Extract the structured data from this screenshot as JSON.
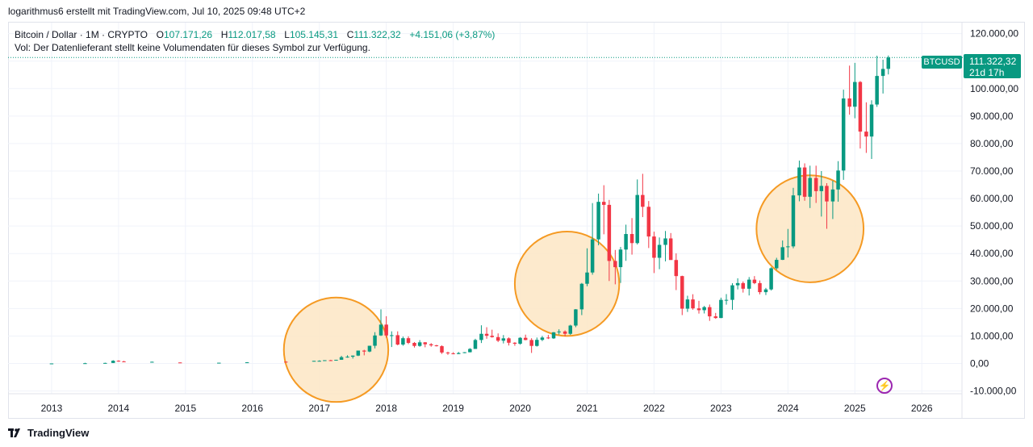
{
  "caption": "logarithmus6 erstellt mit TradingView.com, Jul 10, 2025 09:48 UTC+2",
  "legend": {
    "symbol_line": "Bitcoin / Dollar · 1M · CRYPTO",
    "o_label": "O",
    "o_value": "107.171,26",
    "h_label": "H",
    "h_value": "112.017,58",
    "l_label": "L",
    "l_value": "105.145,31",
    "c_label": "C",
    "c_value": "111.322,32",
    "change": "+4.151,06 (+3,87%)"
  },
  "vol_note": "Vol: Der Datenlieferant stellt keine Volumendaten für dieses Symbol zur Verfügung.",
  "price_tag": {
    "symbol": "BTCUSD",
    "price": "111.322,32",
    "countdown": "21d 17h"
  },
  "footer": {
    "brand": "TradingView"
  },
  "colors": {
    "up": "#089981",
    "down": "#f23645",
    "circle_fill": "#fde6c4",
    "circle_stroke": "#f59a23",
    "grid": "#f0f3fa"
  },
  "icons": {
    "logo": "tradingview-logo-icon",
    "bolt": "lightning-bolt-icon"
  },
  "chart_data": {
    "type": "candlestick",
    "title": "Bitcoin / Dollar · 1M · CRYPTO",
    "y_ticks": [
      "120.000,00",
      "110.000,00",
      "100.000,00",
      "90.000,00",
      "80.000,00",
      "70.000,00",
      "60.000,00",
      "50.000,00",
      "40.000,00",
      "30.000,00",
      "20.000,00",
      "10.000,00",
      "0,00",
      "-10.000,00"
    ],
    "y_tick_values": [
      120000,
      110000,
      100000,
      90000,
      80000,
      70000,
      60000,
      50000,
      40000,
      30000,
      20000,
      10000,
      0,
      -10000
    ],
    "x_ticks": [
      "2013",
      "2014",
      "2015",
      "2016",
      "2017",
      "2018",
      "2019",
      "2020",
      "2021",
      "2022",
      "2023",
      "2024",
      "2025",
      "2026"
    ],
    "ylim": [
      -11000,
      124000
    ],
    "xlim": [
      2012.35,
      2026.6
    ],
    "last_price": 111322.32,
    "highlight_circles": [
      {
        "t": 2017.25,
        "price": 5000,
        "radius_years": 0.78
      },
      {
        "t": 2020.7,
        "price": 29000,
        "radius_years": 0.78
      },
      {
        "t": 2024.33,
        "price": 49000,
        "radius_years": 0.8
      }
    ],
    "candles": [
      {
        "t": 2013.0,
        "o": 13,
        "h": 22,
        "l": 13,
        "c": 20
      },
      {
        "t": 2013.5,
        "o": 90,
        "h": 260,
        "l": 60,
        "c": 100
      },
      {
        "t": 2013.8,
        "o": 150,
        "h": 300,
        "l": 120,
        "c": 200
      },
      {
        "t": 2013.92,
        "o": 200,
        "h": 1200,
        "l": 190,
        "c": 1000
      },
      {
        "t": 2014.0,
        "o": 1000,
        "h": 1160,
        "l": 650,
        "c": 780
      },
      {
        "t": 2014.08,
        "o": 780,
        "h": 950,
        "l": 500,
        "c": 550
      },
      {
        "t": 2014.5,
        "o": 600,
        "h": 700,
        "l": 550,
        "c": 620
      },
      {
        "t": 2014.92,
        "o": 370,
        "h": 400,
        "l": 310,
        "c": 320
      },
      {
        "t": 2015.5,
        "o": 250,
        "h": 300,
        "l": 200,
        "c": 280
      },
      {
        "t": 2015.92,
        "o": 380,
        "h": 500,
        "l": 350,
        "c": 430
      },
      {
        "t": 2016.5,
        "o": 650,
        "h": 780,
        "l": 500,
        "c": 620
      },
      {
        "t": 2016.92,
        "o": 740,
        "h": 980,
        "l": 730,
        "c": 960
      },
      {
        "t": 2017.0,
        "o": 960,
        "h": 1150,
        "l": 750,
        "c": 970
      },
      {
        "t": 2017.08,
        "o": 970,
        "h": 1200,
        "l": 920,
        "c": 1190
      },
      {
        "t": 2017.17,
        "o": 1190,
        "h": 1350,
        "l": 890,
        "c": 1080
      },
      {
        "t": 2017.25,
        "o": 1080,
        "h": 1350,
        "l": 1060,
        "c": 1350
      },
      {
        "t": 2017.33,
        "o": 1350,
        "h": 2800,
        "l": 1350,
        "c": 2300
      },
      {
        "t": 2017.42,
        "o": 2300,
        "h": 3000,
        "l": 2100,
        "c": 2480
      },
      {
        "t": 2017.5,
        "o": 2480,
        "h": 2900,
        "l": 1800,
        "c": 2870
      },
      {
        "t": 2017.58,
        "o": 2870,
        "h": 4700,
        "l": 2700,
        "c": 4700
      },
      {
        "t": 2017.67,
        "o": 4700,
        "h": 5000,
        "l": 2970,
        "c": 4350
      },
      {
        "t": 2017.75,
        "o": 4350,
        "h": 6470,
        "l": 4100,
        "c": 6450
      },
      {
        "t": 2017.83,
        "o": 6450,
        "h": 11400,
        "l": 5500,
        "c": 10200
      },
      {
        "t": 2017.92,
        "o": 10200,
        "h": 19700,
        "l": 10000,
        "c": 14150
      },
      {
        "t": 2018.0,
        "o": 14150,
        "h": 17200,
        "l": 9400,
        "c": 10200
      },
      {
        "t": 2018.08,
        "o": 10200,
        "h": 11700,
        "l": 6000,
        "c": 10300
      },
      {
        "t": 2018.17,
        "o": 10300,
        "h": 11700,
        "l": 6600,
        "c": 6900
      },
      {
        "t": 2018.25,
        "o": 6900,
        "h": 9800,
        "l": 6450,
        "c": 9200
      },
      {
        "t": 2018.33,
        "o": 9200,
        "h": 9900,
        "l": 7050,
        "c": 7500
      },
      {
        "t": 2018.42,
        "o": 7500,
        "h": 7800,
        "l": 5800,
        "c": 6400
      },
      {
        "t": 2018.5,
        "o": 6400,
        "h": 8500,
        "l": 6100,
        "c": 7700
      },
      {
        "t": 2018.58,
        "o": 7700,
        "h": 7800,
        "l": 5900,
        "c": 7000
      },
      {
        "t": 2018.67,
        "o": 7000,
        "h": 7400,
        "l": 6100,
        "c": 6600
      },
      {
        "t": 2018.75,
        "o": 6600,
        "h": 6800,
        "l": 6200,
        "c": 6300
      },
      {
        "t": 2018.83,
        "o": 6300,
        "h": 6600,
        "l": 3500,
        "c": 4000
      },
      {
        "t": 2018.92,
        "o": 4000,
        "h": 4300,
        "l": 3150,
        "c": 3700
      },
      {
        "t": 2019.0,
        "o": 3700,
        "h": 4100,
        "l": 3350,
        "c": 3450
      },
      {
        "t": 2019.08,
        "o": 3450,
        "h": 4200,
        "l": 3400,
        "c": 3800
      },
      {
        "t": 2019.17,
        "o": 3800,
        "h": 4150,
        "l": 3750,
        "c": 4100
      },
      {
        "t": 2019.25,
        "o": 4100,
        "h": 5600,
        "l": 4050,
        "c": 5300
      },
      {
        "t": 2019.33,
        "o": 5300,
        "h": 9000,
        "l": 5300,
        "c": 8550
      },
      {
        "t": 2019.42,
        "o": 8550,
        "h": 13900,
        "l": 7450,
        "c": 10800
      },
      {
        "t": 2019.5,
        "o": 10800,
        "h": 13200,
        "l": 9000,
        "c": 10100
      },
      {
        "t": 2019.58,
        "o": 10100,
        "h": 12300,
        "l": 9400,
        "c": 9600
      },
      {
        "t": 2019.67,
        "o": 9600,
        "h": 10950,
        "l": 7800,
        "c": 8300
      },
      {
        "t": 2019.75,
        "o": 8300,
        "h": 10350,
        "l": 7300,
        "c": 9150
      },
      {
        "t": 2019.83,
        "o": 9150,
        "h": 9500,
        "l": 6550,
        "c": 7550
      },
      {
        "t": 2019.92,
        "o": 7550,
        "h": 7750,
        "l": 6450,
        "c": 7200
      },
      {
        "t": 2020.0,
        "o": 7200,
        "h": 9600,
        "l": 6850,
        "c": 9350
      },
      {
        "t": 2020.08,
        "o": 9350,
        "h": 10500,
        "l": 8450,
        "c": 8550
      },
      {
        "t": 2020.17,
        "o": 8550,
        "h": 9200,
        "l": 3850,
        "c": 6400
      },
      {
        "t": 2020.25,
        "o": 6400,
        "h": 9450,
        "l": 6150,
        "c": 8600
      },
      {
        "t": 2020.33,
        "o": 8600,
        "h": 10050,
        "l": 8150,
        "c": 9450
      },
      {
        "t": 2020.42,
        "o": 9450,
        "h": 10400,
        "l": 8900,
        "c": 9150
      },
      {
        "t": 2020.5,
        "o": 9150,
        "h": 11450,
        "l": 8950,
        "c": 11350
      },
      {
        "t": 2020.58,
        "o": 11350,
        "h": 12450,
        "l": 10550,
        "c": 11650
      },
      {
        "t": 2020.67,
        "o": 11650,
        "h": 12050,
        "l": 9850,
        "c": 10800
      },
      {
        "t": 2020.75,
        "o": 10800,
        "h": 14100,
        "l": 10400,
        "c": 13800
      },
      {
        "t": 2020.83,
        "o": 13800,
        "h": 19800,
        "l": 13200,
        "c": 19700
      },
      {
        "t": 2020.92,
        "o": 19700,
        "h": 29300,
        "l": 17600,
        "c": 29000
      },
      {
        "t": 2021.0,
        "o": 29000,
        "h": 41900,
        "l": 28100,
        "c": 33100
      },
      {
        "t": 2021.08,
        "o": 33100,
        "h": 58350,
        "l": 32300,
        "c": 45150
      },
      {
        "t": 2021.17,
        "o": 45150,
        "h": 61800,
        "l": 43000,
        "c": 58800
      },
      {
        "t": 2021.25,
        "o": 58800,
        "h": 64850,
        "l": 47000,
        "c": 57700
      },
      {
        "t": 2021.33,
        "o": 57700,
        "h": 59500,
        "l": 30000,
        "c": 37300
      },
      {
        "t": 2021.42,
        "o": 37300,
        "h": 41300,
        "l": 28800,
        "c": 35050
      },
      {
        "t": 2021.5,
        "o": 35050,
        "h": 42400,
        "l": 29300,
        "c": 41450
      },
      {
        "t": 2021.58,
        "o": 41450,
        "h": 50500,
        "l": 37350,
        "c": 47100
      },
      {
        "t": 2021.67,
        "o": 47100,
        "h": 52900,
        "l": 39600,
        "c": 43800
      },
      {
        "t": 2021.75,
        "o": 43800,
        "h": 66950,
        "l": 43300,
        "c": 61300
      },
      {
        "t": 2021.83,
        "o": 61300,
        "h": 69000,
        "l": 53250,
        "c": 57000
      },
      {
        "t": 2021.92,
        "o": 57000,
        "h": 59100,
        "l": 42000,
        "c": 46200
      },
      {
        "t": 2022.0,
        "o": 46200,
        "h": 47950,
        "l": 32900,
        "c": 38450
      },
      {
        "t": 2022.08,
        "o": 38450,
        "h": 45850,
        "l": 34300,
        "c": 43150
      },
      {
        "t": 2022.17,
        "o": 43150,
        "h": 48200,
        "l": 37150,
        "c": 45500
      },
      {
        "t": 2022.25,
        "o": 45500,
        "h": 47450,
        "l": 37700,
        "c": 37650
      },
      {
        "t": 2022.33,
        "o": 37650,
        "h": 40050,
        "l": 26700,
        "c": 31800
      },
      {
        "t": 2022.42,
        "o": 31800,
        "h": 31950,
        "l": 17600,
        "c": 19950
      },
      {
        "t": 2022.5,
        "o": 19950,
        "h": 24650,
        "l": 18750,
        "c": 23300
      },
      {
        "t": 2022.58,
        "o": 23300,
        "h": 25200,
        "l": 19550,
        "c": 20050
      },
      {
        "t": 2022.67,
        "o": 20050,
        "h": 22800,
        "l": 18150,
        "c": 19400
      },
      {
        "t": 2022.75,
        "o": 19400,
        "h": 20950,
        "l": 18200,
        "c": 20500
      },
      {
        "t": 2022.83,
        "o": 20500,
        "h": 21450,
        "l": 15500,
        "c": 17150
      },
      {
        "t": 2022.92,
        "o": 17150,
        "h": 18400,
        "l": 16250,
        "c": 16550
      },
      {
        "t": 2023.0,
        "o": 16550,
        "h": 23950,
        "l": 16500,
        "c": 23150
      },
      {
        "t": 2023.08,
        "o": 23150,
        "h": 25250,
        "l": 21400,
        "c": 23150
      },
      {
        "t": 2023.17,
        "o": 23150,
        "h": 29200,
        "l": 19550,
        "c": 28450
      },
      {
        "t": 2023.25,
        "o": 28450,
        "h": 31000,
        "l": 26950,
        "c": 29250
      },
      {
        "t": 2023.33,
        "o": 29250,
        "h": 29850,
        "l": 25800,
        "c": 27200
      },
      {
        "t": 2023.42,
        "o": 27200,
        "h": 31450,
        "l": 24750,
        "c": 30500
      },
      {
        "t": 2023.5,
        "o": 30500,
        "h": 31800,
        "l": 28850,
        "c": 29250
      },
      {
        "t": 2023.58,
        "o": 29250,
        "h": 30200,
        "l": 25150,
        "c": 25950
      },
      {
        "t": 2023.67,
        "o": 25950,
        "h": 27500,
        "l": 24900,
        "c": 26950
      },
      {
        "t": 2023.75,
        "o": 26950,
        "h": 35000,
        "l": 26550,
        "c": 34650
      },
      {
        "t": 2023.83,
        "o": 34650,
        "h": 38450,
        "l": 34100,
        "c": 37700
      },
      {
        "t": 2023.92,
        "o": 37700,
        "h": 44750,
        "l": 37650,
        "c": 42300
      },
      {
        "t": 2024.0,
        "o": 42300,
        "h": 48950,
        "l": 38550,
        "c": 42600
      },
      {
        "t": 2024.08,
        "o": 42600,
        "h": 63900,
        "l": 41900,
        "c": 61150
      },
      {
        "t": 2024.17,
        "o": 61150,
        "h": 73800,
        "l": 59000,
        "c": 71300
      },
      {
        "t": 2024.25,
        "o": 71300,
        "h": 72800,
        "l": 59200,
        "c": 60650
      },
      {
        "t": 2024.33,
        "o": 60650,
        "h": 71950,
        "l": 56550,
        "c": 67500
      },
      {
        "t": 2024.42,
        "o": 67500,
        "h": 71950,
        "l": 58400,
        "c": 62700
      },
      {
        "t": 2024.5,
        "o": 62700,
        "h": 70000,
        "l": 53450,
        "c": 64600
      },
      {
        "t": 2024.58,
        "o": 64600,
        "h": 65600,
        "l": 49000,
        "c": 58950
      },
      {
        "t": 2024.67,
        "o": 58950,
        "h": 66500,
        "l": 52550,
        "c": 63300
      },
      {
        "t": 2024.75,
        "o": 63300,
        "h": 73600,
        "l": 58850,
        "c": 70200
      },
      {
        "t": 2024.83,
        "o": 70200,
        "h": 99600,
        "l": 66800,
        "c": 96400
      },
      {
        "t": 2024.92,
        "o": 96400,
        "h": 108350,
        "l": 90500,
        "c": 93400
      },
      {
        "t": 2025.0,
        "o": 93400,
        "h": 109350,
        "l": 89200,
        "c": 102400
      },
      {
        "t": 2025.08,
        "o": 102400,
        "h": 102750,
        "l": 78200,
        "c": 84350
      },
      {
        "t": 2025.17,
        "o": 84350,
        "h": 95000,
        "l": 76600,
        "c": 82550
      },
      {
        "t": 2025.25,
        "o": 82550,
        "h": 95750,
        "l": 74400,
        "c": 94200
      },
      {
        "t": 2025.33,
        "o": 94200,
        "h": 111950,
        "l": 93350,
        "c": 104600
      },
      {
        "t": 2025.42,
        "o": 104600,
        "h": 110500,
        "l": 98200,
        "c": 107150
      },
      {
        "t": 2025.5,
        "o": 107171.26,
        "h": 112017.58,
        "l": 105145.31,
        "c": 111322.32
      }
    ]
  }
}
